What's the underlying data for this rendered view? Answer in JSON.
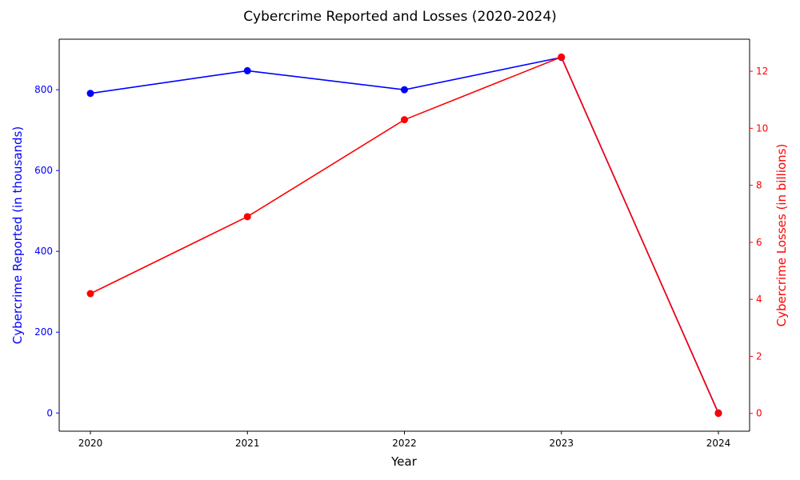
{
  "chart_data": {
    "type": "line",
    "title": "Cybercrime Reported and Losses (2020-2024)",
    "xlabel": "Year",
    "x": [
      "2020",
      "2021",
      "2022",
      "2023",
      "2024"
    ],
    "grid": false,
    "legend": "none",
    "y_left": {
      "label": "Cybercrime Reported (in thousands)",
      "color": "#0000ff",
      "lim": [
        -45,
        925
      ],
      "ticks": [
        0,
        200,
        400,
        600,
        800
      ]
    },
    "y_right": {
      "label": "Cybercrime Losses (in billions)",
      "color": "#ff0000",
      "lim": [
        -0.625,
        13.125
      ],
      "ticks": [
        0,
        2,
        4,
        6,
        8,
        10,
        12
      ]
    },
    "series": [
      {
        "axis": "left",
        "color": "#0000ff",
        "marker": "circle",
        "values": [
          791,
          847,
          800,
          880,
          0
        ]
      },
      {
        "axis": "right",
        "color": "#ff0000",
        "marker": "circle",
        "values": [
          4.2,
          6.9,
          10.3,
          12.5,
          0
        ]
      }
    ]
  }
}
